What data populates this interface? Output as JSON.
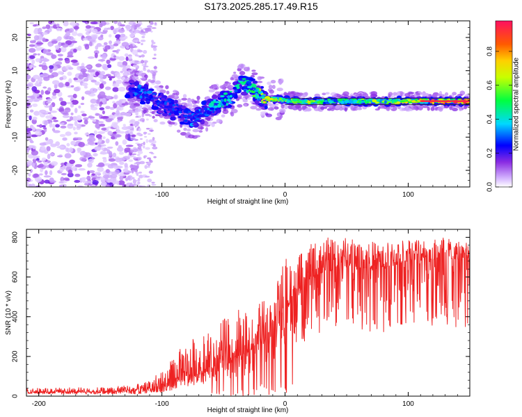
{
  "title": "S173.2025.285.17.49.R15",
  "chart_data": [
    {
      "type": "heatmap",
      "name": "spectrogram",
      "xlabel": "Height of straight line (km)",
      "ylabel": "Frequency (Hz)",
      "xlim": [
        -210,
        150
      ],
      "ylim": [
        -25,
        25
      ],
      "xticks": [
        -200,
        -100,
        0,
        100
      ],
      "yticks": [
        -20,
        -10,
        0,
        10,
        20
      ],
      "grid": false,
      "colorbar": {
        "label": "Normalized spectral amplitude",
        "range": [
          0,
          0.98
        ],
        "ticks": [
          0.0,
          0.2,
          0.4,
          0.6,
          0.8
        ]
      },
      "ridge": {
        "x": [
          -125,
          -115,
          -105,
          -95,
          -85,
          -75,
          -65,
          -55,
          -45,
          -35,
          -28,
          -22,
          -15,
          -8,
          0,
          8,
          15,
          30,
          60,
          100,
          150
        ],
        "frequency": [
          5,
          3,
          1,
          -1,
          -2.5,
          -5,
          -2,
          0,
          2,
          6,
          5,
          3,
          1.5,
          1.5,
          1,
          1,
          0.5,
          0.8,
          0.8,
          0.8,
          0.8
        ],
        "amplitude": [
          0.3,
          0.35,
          0.3,
          0.3,
          0.3,
          0.35,
          0.4,
          0.45,
          0.5,
          0.45,
          0.55,
          0.6,
          0.8,
          0.75,
          0.7,
          0.7,
          0.75,
          0.55,
          0.6,
          0.75,
          0.97
        ]
      }
    },
    {
      "type": "line",
      "name": "snr",
      "xlabel": "Height of straight line (km)",
      "ylabel": "SNR (10 * v/v)",
      "xlim": [
        -210,
        150
      ],
      "ylim": [
        0,
        840
      ],
      "xticks": [
        -200,
        -100,
        0,
        100
      ],
      "yticks": [
        0,
        200,
        400,
        600,
        800
      ],
      "grid": false,
      "series": [
        {
          "name": "SNR",
          "color": "#ee2222",
          "envelope_x": [
            -210,
            -150,
            -120,
            -100,
            -80,
            -60,
            -40,
            -30,
            -20,
            -10,
            0,
            10,
            20,
            30,
            50,
            80,
            100,
            130,
            150
          ],
          "baseline": [
            18,
            20,
            22,
            40,
            90,
            130,
            180,
            220,
            300,
            370,
            420,
            500,
            580,
            620,
            650,
            640,
            680,
            690,
            680
          ],
          "peak": [
            40,
            45,
            60,
            120,
            280,
            330,
            450,
            420,
            490,
            500,
            700,
            700,
            760,
            800,
            800,
            770,
            800,
            810,
            790
          ]
        }
      ]
    }
  ]
}
